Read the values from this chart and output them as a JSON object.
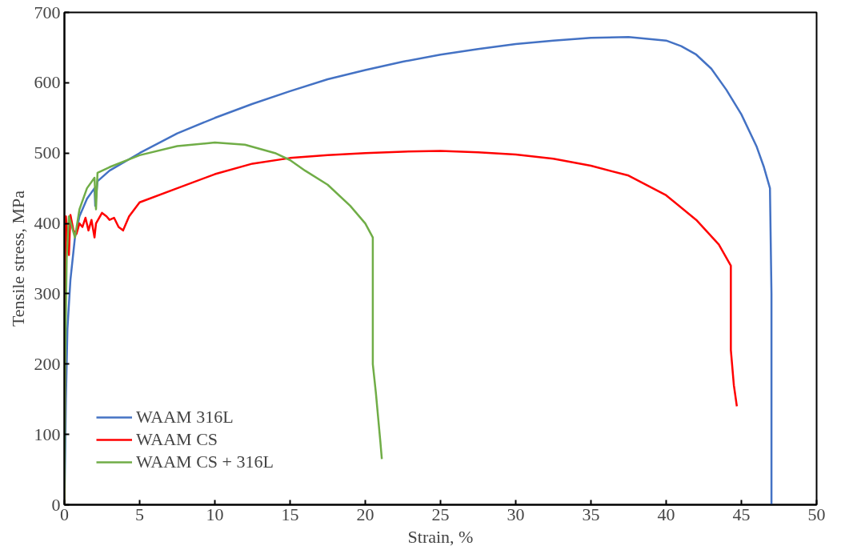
{
  "chart_data": {
    "type": "line",
    "xlabel": "Strain, %",
    "ylabel": "Tensile stress, MPa",
    "xlim": [
      0,
      50
    ],
    "ylim": [
      0,
      700
    ],
    "xticks": [
      0,
      5,
      10,
      15,
      20,
      25,
      30,
      35,
      40,
      45,
      50
    ],
    "yticks": [
      0,
      100,
      200,
      300,
      400,
      500,
      600,
      700
    ],
    "grid": false,
    "legend": "bottom left",
    "marker": "none",
    "line_style": "solid",
    "series": [
      {
        "name": "WAAM 316L",
        "color": "#4472c4",
        "x": [
          0,
          0.1,
          0.2,
          0.4,
          0.7,
          1,
          1.5,
          2,
          2.05,
          2.2,
          3,
          5,
          7.5,
          10,
          12.5,
          15,
          17.5,
          20,
          22.5,
          25,
          27.5,
          30,
          32.5,
          35,
          37.5,
          40,
          41,
          42,
          43,
          44,
          45,
          46,
          46.5,
          46.9,
          47,
          47
        ],
        "values": [
          0,
          150,
          250,
          320,
          380,
          410,
          435,
          450,
          425,
          460,
          475,
          500,
          528,
          550,
          570,
          588,
          605,
          618,
          630,
          640,
          648,
          655,
          660,
          664,
          665,
          660,
          652,
          640,
          620,
          590,
          555,
          510,
          480,
          450,
          300,
          0
        ]
      },
      {
        "name": "WAAM CS",
        "color": "#ff0000",
        "x": [
          0,
          0.05,
          0.1,
          0.2,
          0.3,
          0.4,
          0.6,
          0.8,
          1,
          1.2,
          1.4,
          1.6,
          1.8,
          2,
          2.1,
          2.5,
          2.8,
          3,
          3.3,
          3.6,
          3.9,
          4.3,
          5,
          7.5,
          10,
          12.5,
          15,
          17.5,
          20,
          22.5,
          25,
          27.5,
          30,
          32.5,
          35,
          37.5,
          40,
          42,
          43.5,
          44.3,
          44.3,
          44.5,
          44.7
        ],
        "values": [
          0,
          300,
          410,
          380,
          355,
          412,
          390,
          385,
          400,
          395,
          408,
          390,
          405,
          380,
          400,
          415,
          410,
          405,
          408,
          395,
          390,
          410,
          430,
          450,
          470,
          485,
          493,
          497,
          500,
          502,
          503,
          501,
          498,
          492,
          482,
          468,
          440,
          405,
          370,
          340,
          220,
          170,
          140
        ]
      },
      {
        "name": "WAAM CS + 316L",
        "color": "#70ad47",
        "x": [
          0,
          0.05,
          0.15,
          0.3,
          0.5,
          0.7,
          1,
          1.5,
          2,
          2.1,
          2.2,
          3,
          5,
          7.5,
          10,
          12,
          14,
          15,
          16,
          17.5,
          19,
          20,
          20.5,
          20.5,
          20.7,
          21,
          21.1
        ],
        "values": [
          0,
          200,
          350,
          410,
          395,
          380,
          420,
          450,
          465,
          420,
          472,
          480,
          497,
          510,
          515,
          512,
          500,
          490,
          475,
          455,
          425,
          400,
          380,
          200,
          160,
          90,
          65
        ]
      }
    ]
  }
}
